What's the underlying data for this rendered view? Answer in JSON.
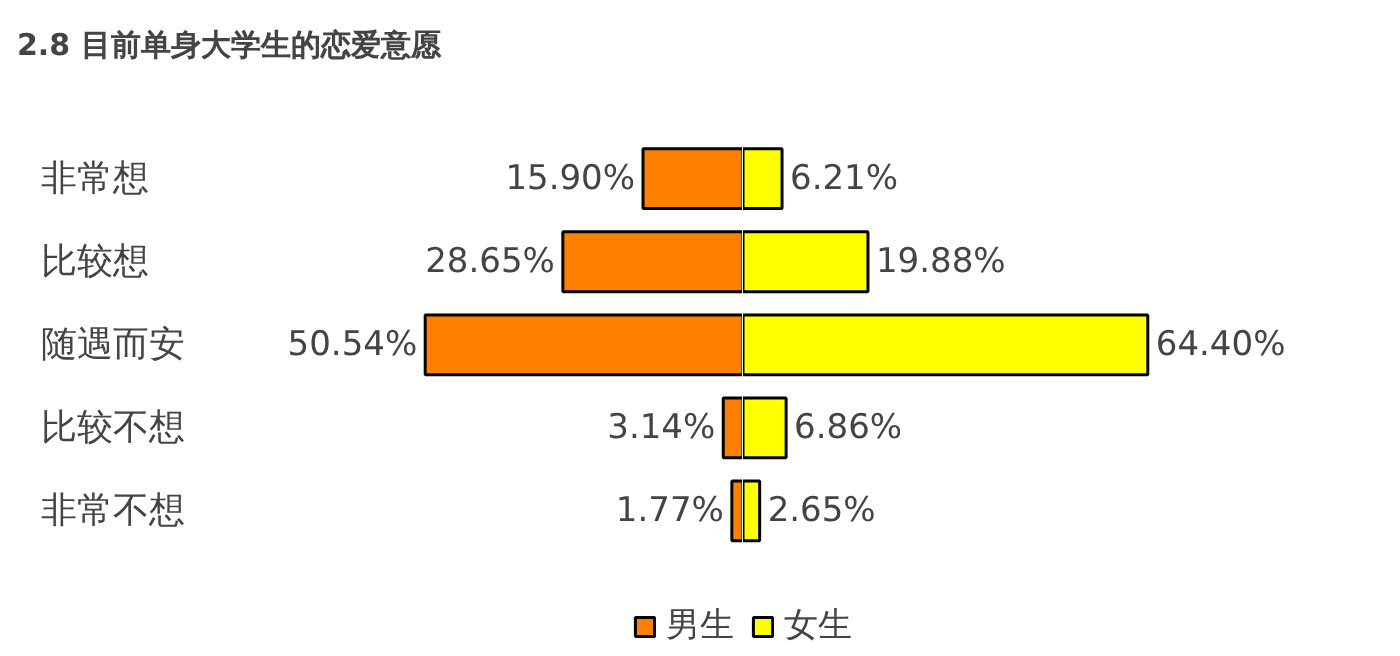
{
  "chart_data": [
    {
      "type": "bar",
      "orientation": "horizontal",
      "title": "2.8 目前单身大学生的恋爱意愿",
      "categories": [
        "非常想",
        "比较想",
        "随遇而安",
        "比较不想",
        "非常不想"
      ],
      "xlim": [
        118,
        0
      ],
      "series": [
        {
          "name": "男生",
          "color": "#ff8000",
          "values": [
            15.9,
            28.65,
            50.54,
            3.14,
            1.77
          ],
          "value_labels": [
            "15.90%",
            "28.65%",
            "50.54%",
            "3.14%",
            "1.77%"
          ]
        }
      ],
      "legend": "bottom right",
      "tick_labels": "y"
    },
    {
      "type": "bar",
      "orientation": "horizontal",
      "categories": [
        null,
        null,
        null,
        null,
        null
      ],
      "xlim": [
        0,
        105
      ],
      "series": [
        {
          "name": "女生",
          "color": "#ffff00",
          "values": [
            6.21,
            19.88,
            64.4,
            6.86,
            2.65
          ],
          "value_labels": [
            "6.21%",
            "19.88%",
            "64.40%",
            "6.86%",
            "2.65%"
          ]
        }
      ],
      "legend": "bottom left"
    }
  ]
}
